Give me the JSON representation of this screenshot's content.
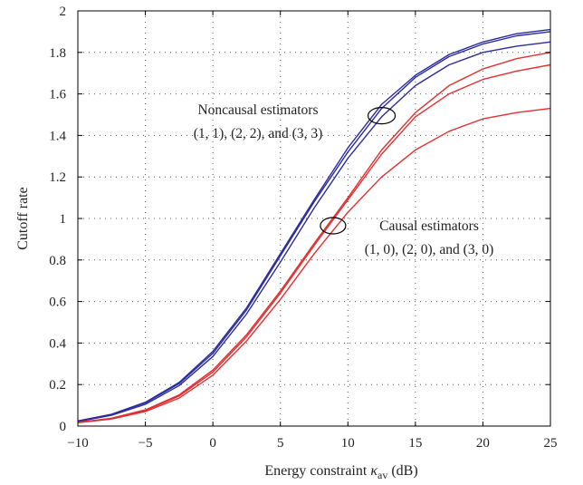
{
  "chart_data": {
    "type": "line",
    "title": "",
    "xlabel_main": "Energy constraint ",
    "xlabel_symbol": "κ",
    "xlabel_sub": "av",
    "xlabel_unit": " (dB)",
    "ylabel": "Cutoff rate",
    "xlim": [
      -10,
      25
    ],
    "ylim": [
      0,
      2
    ],
    "xticks": [
      -10,
      -5,
      0,
      5,
      10,
      15,
      20,
      25
    ],
    "yticks": [
      0,
      0.2,
      0.4,
      0.6,
      0.8,
      1,
      1.2,
      1.4,
      1.6,
      1.8,
      2
    ],
    "x": [
      -10,
      -7.5,
      -5,
      -2.5,
      0,
      2.5,
      5,
      7.5,
      10,
      12.5,
      15,
      17.5,
      20,
      22.5,
      25
    ],
    "grid": true,
    "series": [
      {
        "group": "noncausal",
        "color": "#2c2c9c",
        "values": [
          0.025,
          0.057,
          0.115,
          0.21,
          0.36,
          0.57,
          0.83,
          1.09,
          1.34,
          1.55,
          1.69,
          1.79,
          1.85,
          1.89,
          1.91
        ]
      },
      {
        "group": "noncausal",
        "color": "#2c2c9c",
        "values": [
          0.024,
          0.055,
          0.112,
          0.205,
          0.35,
          0.56,
          0.82,
          1.08,
          1.32,
          1.53,
          1.68,
          1.78,
          1.84,
          1.88,
          1.9
        ]
      },
      {
        "group": "noncausal",
        "color": "#2c2c9c",
        "values": [
          0.022,
          0.052,
          0.105,
          0.195,
          0.335,
          0.54,
          0.79,
          1.05,
          1.29,
          1.49,
          1.64,
          1.74,
          1.8,
          1.83,
          1.85
        ]
      },
      {
        "group": "causal",
        "color": "#e03030",
        "values": [
          0.018,
          0.038,
          0.078,
          0.15,
          0.27,
          0.44,
          0.65,
          0.88,
          1.1,
          1.33,
          1.51,
          1.64,
          1.72,
          1.77,
          1.8
        ]
      },
      {
        "group": "causal",
        "color": "#e03030",
        "values": [
          0.017,
          0.036,
          0.075,
          0.145,
          0.26,
          0.43,
          0.64,
          0.87,
          1.09,
          1.31,
          1.49,
          1.6,
          1.67,
          1.71,
          1.74
        ]
      },
      {
        "group": "causal",
        "color": "#e03030",
        "values": [
          0.016,
          0.034,
          0.07,
          0.135,
          0.245,
          0.41,
          0.61,
          0.83,
          1.03,
          1.2,
          1.33,
          1.42,
          1.48,
          1.51,
          1.53
        ]
      }
    ],
    "annotations": [
      {
        "lines": [
          "Noncausal estimators",
          "(1, 1), (2, 2), and (3, 3)"
        ],
        "ellipse_at": [
          12.5,
          1.495
        ]
      },
      {
        "lines": [
          "Causal estimators",
          "(1, 0), (2, 0), and (3, 0)"
        ],
        "ellipse_at": [
          8.9,
          0.965
        ]
      }
    ]
  }
}
